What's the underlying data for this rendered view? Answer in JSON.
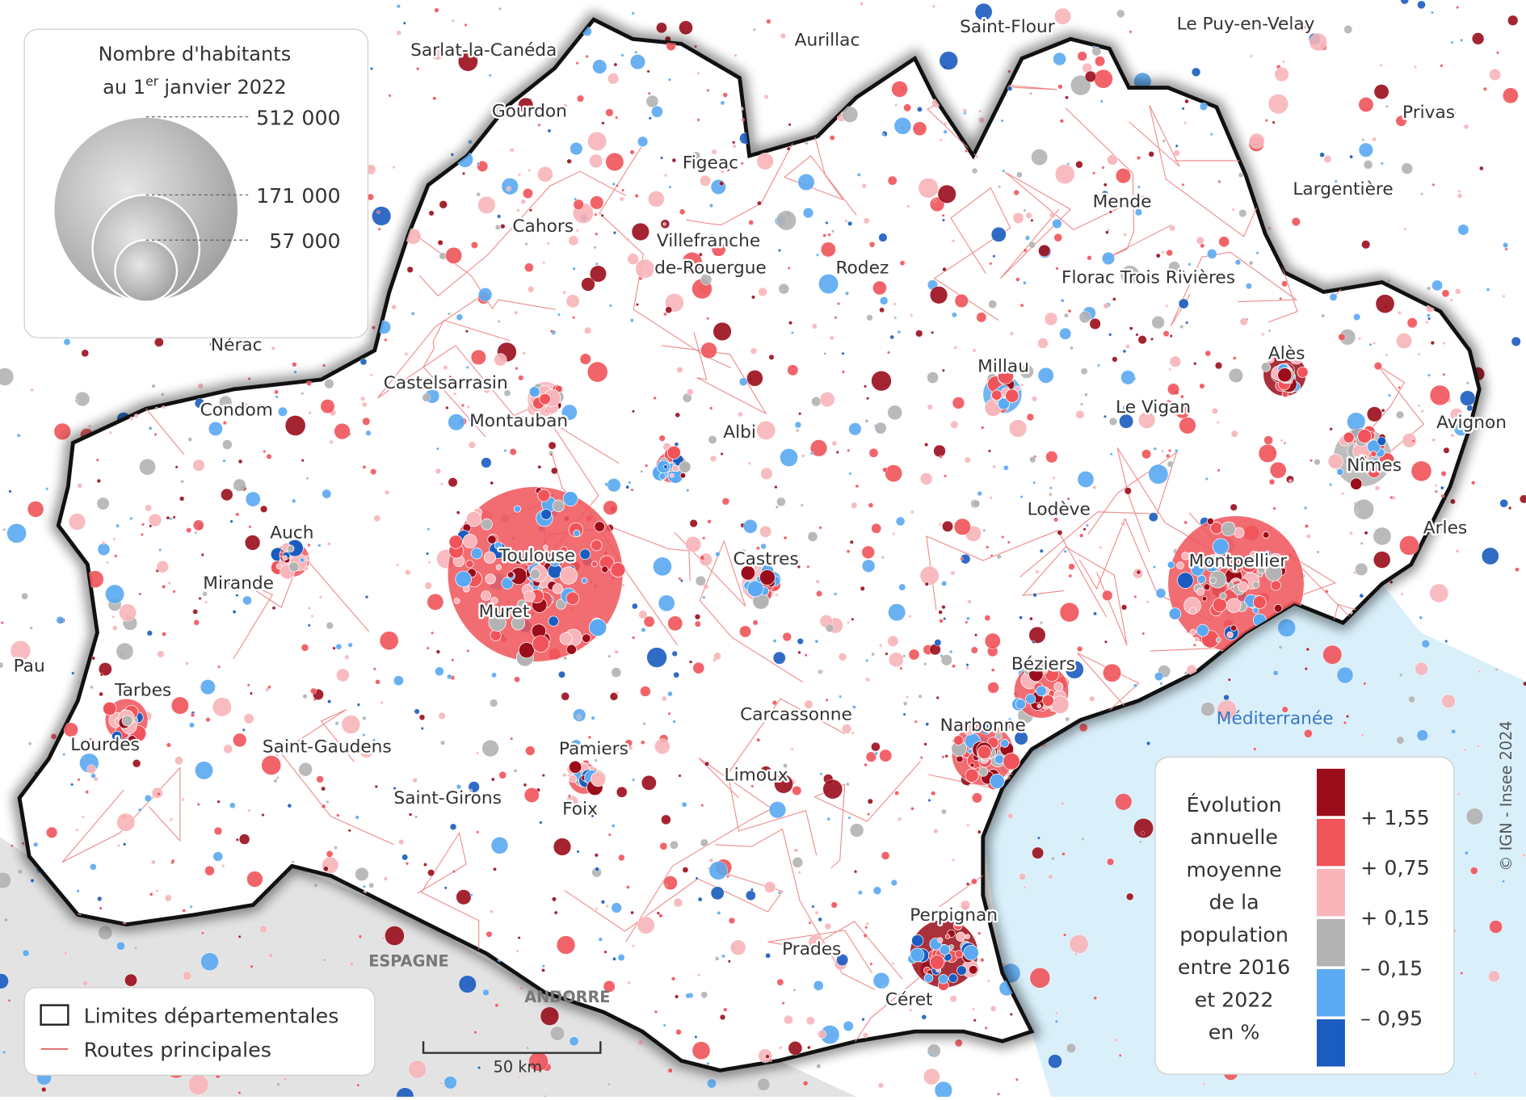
{
  "size_legend": {
    "title_line1": "Nombre d'habitants",
    "title_line2_a": "au 1",
    "title_line2_sup": "er",
    "title_line2_b": "janvier 2022",
    "sizes": [
      {
        "value": 512000,
        "label": "512 000"
      },
      {
        "value": 171000,
        "label": "171 000"
      },
      {
        "value": 57000,
        "label": "57 000"
      }
    ]
  },
  "color_legend": {
    "title_lines": [
      "Évolution",
      "annuelle",
      "moyenne",
      "de la",
      "population",
      "entre 2016",
      "et 2022",
      "en %"
    ],
    "classes": [
      {
        "color": "#9b0d1b"
      },
      {
        "color": "#f0545a"
      },
      {
        "color": "#f8b5ba"
      },
      {
        "color": "#b3b3b3"
      },
      {
        "color": "#5aa9f2"
      },
      {
        "color": "#1a5cbf"
      }
    ],
    "breaks": [
      {
        "value": 1.55,
        "label": "+ 1,55"
      },
      {
        "value": 0.75,
        "label": "+ 0,75"
      },
      {
        "value": 0.15,
        "label": "+ 0,15"
      },
      {
        "value": -0.15,
        "label": "– 0,15"
      },
      {
        "value": -0.95,
        "label": "– 0,95"
      }
    ]
  },
  "border_legend": [
    "Limites départementales",
    "Routes principales"
  ],
  "scale_label": "50 km",
  "credits": "© IGN - Insee 2024",
  "sea": "Méditerranée",
  "countries": [
    "ESPAGNE",
    "ANDORRE"
  ],
  "cities": [
    "Sarlat-la-Canéda",
    "Aurillac",
    "Saint-Flour",
    "Le Puy-en-Velay",
    "Gourdon",
    "Privas",
    "Figeac",
    "Mende",
    "Largentière",
    "Cahors",
    "Villefranche",
    "de-Rouergue",
    "Rodez",
    "Florac Trois Rivières",
    "Nérac",
    "Castelsarrasin",
    "Millau",
    "Alès",
    "Condom",
    "Montauban",
    "Le Vigan",
    "Avignon",
    "Albi",
    "Nîmes",
    "Lodève",
    "Arles",
    "Auch",
    "Toulouse",
    "Castres",
    "Montpellier",
    "Mirande",
    "Muret",
    "Pau",
    "Béziers",
    "Tarbes",
    "Carcassonne",
    "Narbonne",
    "Lourdes",
    "Saint-Gaudens",
    "Pamiers",
    "Limoux",
    "Saint-Girons",
    "Foix",
    "Perpignan",
    "Prades",
    "Céret"
  ]
}
